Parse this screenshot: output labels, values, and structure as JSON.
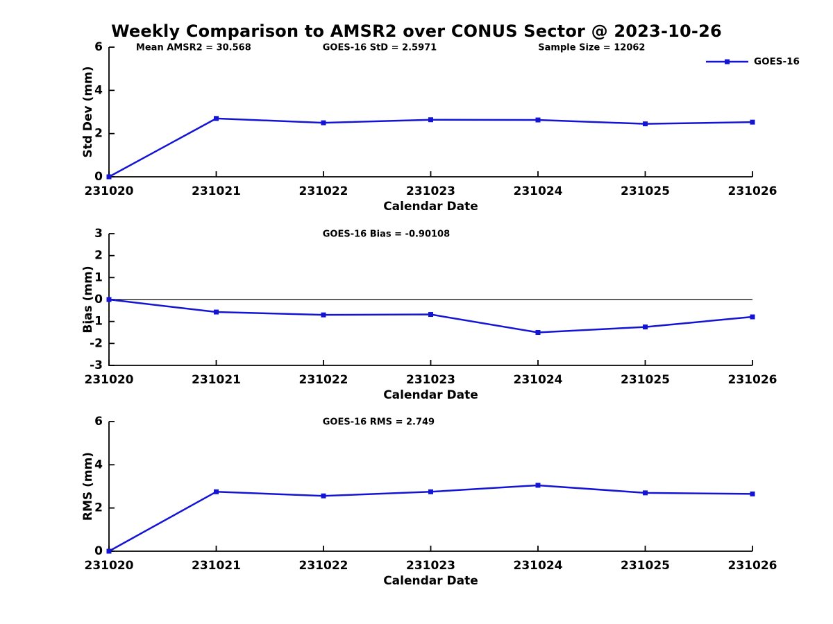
{
  "title": "Weekly Comparison to AMSR2 over CONUS Sector @ 2023-10-26",
  "accent_color": "#1414d4",
  "axis_color": "#000000",
  "chart_data": [
    {
      "type": "line",
      "panel": "std-dev",
      "ylabel": "Std Dev (mm)",
      "xlabel": "Calendar Date",
      "ylim": [
        0,
        6
      ],
      "yticks": [
        0,
        2,
        4,
        6
      ],
      "categories": [
        "231020",
        "231021",
        "231022",
        "231023",
        "231024",
        "231025",
        "231026"
      ],
      "series": [
        {
          "name": "GOES-16",
          "values": [
            0,
            2.7,
            2.5,
            2.64,
            2.63,
            2.45,
            2.53
          ]
        }
      ],
      "annotations": [
        {
          "text": "Mean AMSR2 = 30.568",
          "xfrac": 0.042
        },
        {
          "text": "GOES-16 StD = 2.5971",
          "xfrac": 0.332
        },
        {
          "text": "Sample Size = 12062",
          "xfrac": 0.667
        }
      ],
      "zero_line": false,
      "show_legend": true,
      "legend_position": "top-right-outside",
      "grid": false
    },
    {
      "type": "line",
      "panel": "bias",
      "ylabel": "Bias (mm)",
      "xlabel": "Calendar Date",
      "ylim": [
        -3,
        3
      ],
      "yticks": [
        3,
        2,
        1,
        0,
        -1,
        -2,
        -3
      ],
      "categories": [
        "231020",
        "231021",
        "231022",
        "231023",
        "231024",
        "231025",
        "231026"
      ],
      "series": [
        {
          "name": "GOES-16",
          "values": [
            0,
            -0.57,
            -0.7,
            -0.68,
            -1.5,
            -1.25,
            -0.79
          ]
        }
      ],
      "annotations": [
        {
          "text": "GOES-16 Bias  = -0.90108",
          "xfrac": 0.332
        }
      ],
      "zero_line": true,
      "show_legend": false,
      "grid": false
    },
    {
      "type": "line",
      "panel": "rms",
      "ylabel": "RMS (mm)",
      "xlabel": "Calendar Date",
      "ylim": [
        0,
        6
      ],
      "yticks": [
        0,
        2,
        4,
        6
      ],
      "categories": [
        "231020",
        "231021",
        "231022",
        "231023",
        "231024",
        "231025",
        "231026"
      ],
      "series": [
        {
          "name": "GOES-16",
          "values": [
            0,
            2.75,
            2.56,
            2.75,
            3.05,
            2.7,
            2.65
          ]
        }
      ],
      "annotations": [
        {
          "text": "GOES-16 RMS = 2.749",
          "xfrac": 0.332
        }
      ],
      "zero_line": false,
      "show_legend": false,
      "grid": false
    }
  ]
}
